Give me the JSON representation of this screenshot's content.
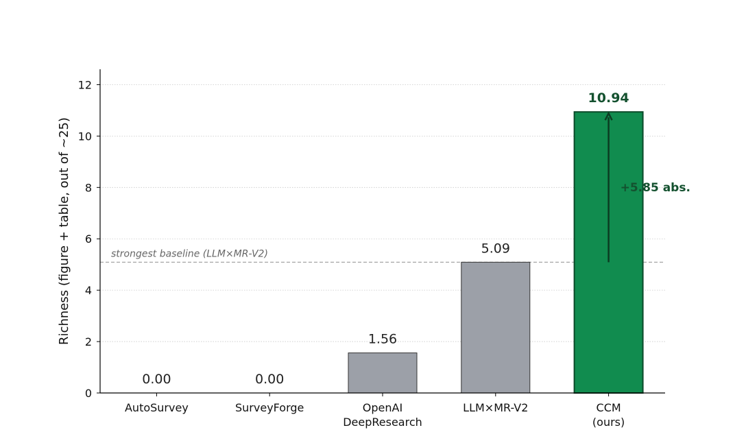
{
  "chart_data": {
    "type": "bar",
    "categories": [
      [
        "AutoSurvey"
      ],
      [
        "SurveyForge"
      ],
      [
        "OpenAI",
        "DeepResearch"
      ],
      [
        "LLM×MR-V2"
      ],
      [
        "CCM",
        "(ours)"
      ]
    ],
    "values": [
      0.0,
      0.0,
      1.56,
      5.09,
      10.94
    ],
    "value_labels": [
      "0.00",
      "0.00",
      "1.56",
      "5.09",
      "10.94"
    ],
    "bar_colors": [
      "#9ca0a8",
      "#9ca0a8",
      "#9ca0a8",
      "#9ca0a8",
      "#118c4f"
    ],
    "highlight_index": 4,
    "ylabel": "Richness  (figure + table, out of  ~25)",
    "ylim": [
      0,
      12.6
    ],
    "yticks": [
      0,
      2,
      4,
      6,
      8,
      10,
      12
    ],
    "grid": "y-dotted",
    "baseline": {
      "value": 5.09,
      "label": "strongest baseline (LLM×MR-V2)"
    },
    "annotation": {
      "text": "+5.85 abs.",
      "from": 5.09,
      "to": 10.94
    },
    "colors": {
      "baseline_bar": "#9ca0a8",
      "highlight_bar": "#118c4f",
      "highlight_text": "#14512f",
      "grid": "#c8c8c8"
    }
  }
}
